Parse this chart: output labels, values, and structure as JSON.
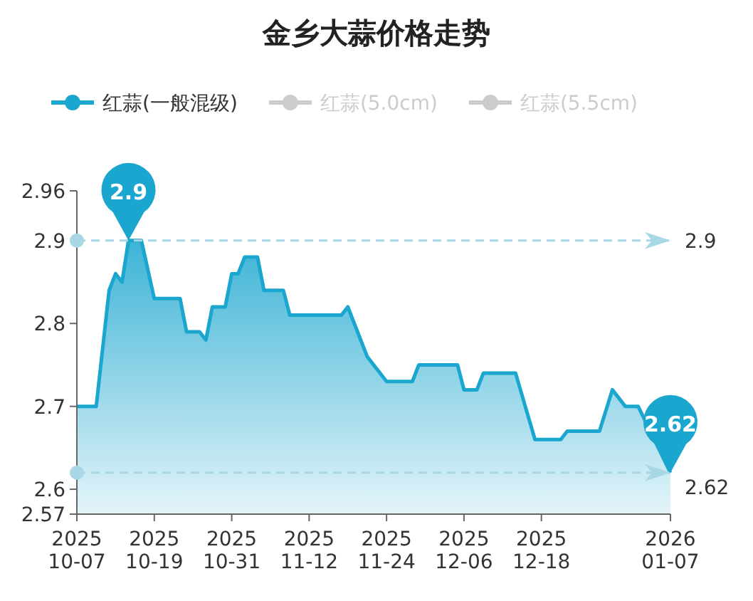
{
  "chart_data": {
    "type": "area",
    "title": "金乡大蒜价格走势",
    "x": [
      "2025-10-07",
      "2025-10-10",
      "2025-10-12",
      "2025-10-13",
      "2025-10-14",
      "2025-10-15",
      "2025-10-17",
      "2025-10-19",
      "2025-10-23",
      "2025-10-24",
      "2025-10-26",
      "2025-10-27",
      "2025-10-28",
      "2025-10-30",
      "2025-10-31",
      "2025-11-01",
      "2025-11-02",
      "2025-11-04",
      "2025-11-05",
      "2025-11-08",
      "2025-11-09",
      "2025-11-17",
      "2025-11-18",
      "2025-11-21",
      "2025-11-24",
      "2025-11-28",
      "2025-11-29",
      "2025-12-05",
      "2025-12-06",
      "2025-12-08",
      "2025-12-09",
      "2025-12-14",
      "2025-12-17",
      "2025-12-21",
      "2025-12-22",
      "2025-12-27",
      "2025-12-29",
      "2025-12-31",
      "2026-01-02",
      "2026-01-07"
    ],
    "series": [
      {
        "name": "红蒜(一般混级)",
        "color": "#1ba6cf",
        "values": [
          2.7,
          2.7,
          2.84,
          2.86,
          2.85,
          2.9,
          2.9,
          2.83,
          2.83,
          2.79,
          2.79,
          2.78,
          2.82,
          2.82,
          2.86,
          2.86,
          2.88,
          2.88,
          2.84,
          2.84,
          2.81,
          2.81,
          2.82,
          2.76,
          2.73,
          2.73,
          2.75,
          2.75,
          2.72,
          2.72,
          2.74,
          2.74,
          2.66,
          2.66,
          2.67,
          2.67,
          2.72,
          2.7,
          2.7,
          2.62
        ]
      },
      {
        "name": "红蒜(5.0cm)",
        "color": "#cccccc",
        "values": [
          null,
          null,
          null,
          null,
          null,
          null,
          null,
          null,
          null,
          null,
          null,
          null,
          null,
          null,
          null,
          null,
          null,
          null,
          null,
          null,
          null,
          null,
          null,
          null,
          null,
          null,
          null,
          null,
          null,
          null,
          null,
          null,
          null,
          null,
          null,
          null,
          null,
          null,
          null,
          null
        ]
      },
      {
        "name": "红蒜(5.5cm)",
        "color": "#cccccc",
        "values": [
          null,
          null,
          null,
          null,
          null,
          null,
          null,
          null,
          null,
          null,
          null,
          null,
          null,
          null,
          null,
          null,
          null,
          null,
          null,
          null,
          null,
          null,
          null,
          null,
          null,
          null,
          null,
          null,
          null,
          null,
          null,
          null,
          null,
          null,
          null,
          null,
          null,
          null,
          null,
          null
        ]
      }
    ],
    "xlim": [
      "2025-10-07",
      "2026-01-07"
    ],
    "xticks": [
      {
        "value": "2025-10-07",
        "label": "2025\n10-07"
      },
      {
        "value": "2025-10-19",
        "label": "2025\n10-19"
      },
      {
        "value": "2025-10-31",
        "label": "2025\n10-31"
      },
      {
        "value": "2025-11-12",
        "label": "2025\n11-12"
      },
      {
        "value": "2025-11-24",
        "label": "2025\n11-24"
      },
      {
        "value": "2025-12-06",
        "label": "2025\n12-06"
      },
      {
        "value": "2025-12-18",
        "label": "2025\n12-18"
      },
      {
        "value": "2026-01-07",
        "label": "2026\n01-07"
      }
    ],
    "ylim": [
      2.57,
      2.96
    ],
    "yticks": [
      2.57,
      2.6,
      2.7,
      2.8,
      2.9,
      2.96
    ],
    "ref_lines": [
      {
        "axis": "y",
        "value": 2.9,
        "label": "2.9",
        "color": "#a8d8e6",
        "line_style": "dashed"
      },
      {
        "axis": "y",
        "value": 2.62,
        "label": "2.62",
        "color": "#a8d8e6",
        "line_style": "dashed"
      }
    ],
    "annotations": [
      {
        "text": "2.9",
        "x": "2025-10-15",
        "y": 2.9
      },
      {
        "text": "2.62",
        "x": "2026-01-07",
        "y": 2.62
      }
    ],
    "legend": "top",
    "grid": false
  }
}
